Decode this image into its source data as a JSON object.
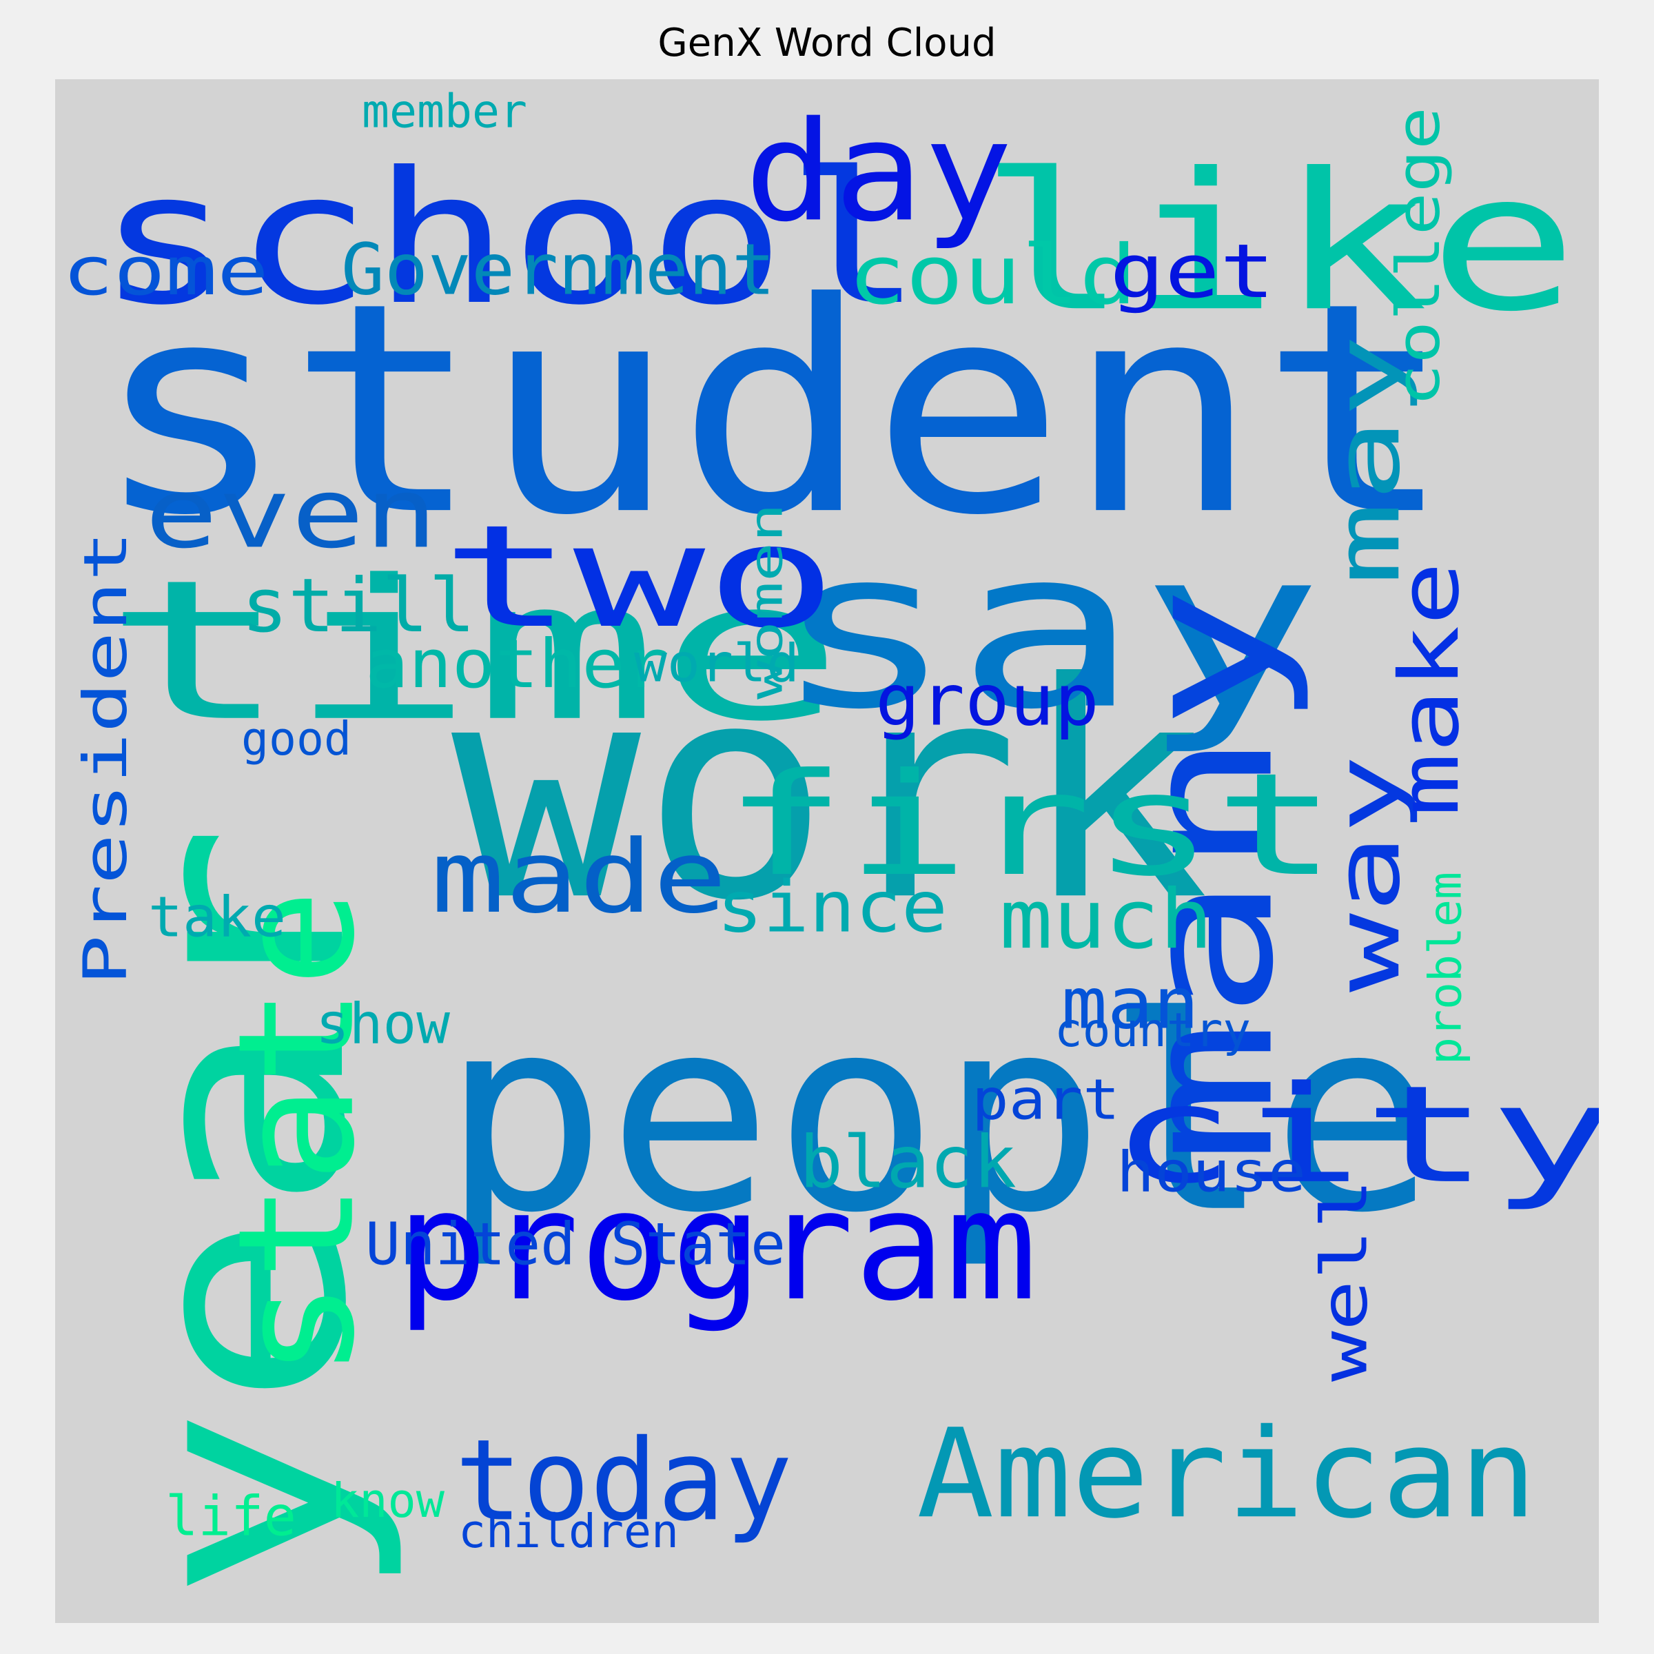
{
  "title": "GenX Word Cloud",
  "words": [
    {
      "text": "student",
      "color": "#0563d2"
    },
    {
      "text": "people",
      "color": "#0579c2"
    },
    {
      "text": "work",
      "color": "#05a0ac"
    },
    {
      "text": "time",
      "color": "#00b4a8"
    },
    {
      "text": "year",
      "color": "#00d3a0"
    },
    {
      "text": "say",
      "color": "#0278c8"
    },
    {
      "text": "school",
      "color": "#0438e0"
    },
    {
      "text": "like",
      "color": "#00c4a8"
    },
    {
      "text": "many",
      "color": "#0444de"
    },
    {
      "text": "first",
      "color": "#00b4a8"
    },
    {
      "text": "state",
      "color": "#00ee90"
    },
    {
      "text": "program",
      "color": "#0000ee"
    },
    {
      "text": "city",
      "color": "#0438e0"
    },
    {
      "text": "American",
      "color": "#0398b4"
    },
    {
      "text": "two",
      "color": "#0230e4"
    },
    {
      "text": "even",
      "color": "#0760c8"
    },
    {
      "text": "day",
      "color": "#0414e4"
    },
    {
      "text": "today",
      "color": "#0444d4"
    },
    {
      "text": "made",
      "color": "#0460c8"
    },
    {
      "text": "could",
      "color": "#00c8a8"
    },
    {
      "text": "Government",
      "color": "#0288b8"
    },
    {
      "text": "way",
      "color": "#0438e0"
    },
    {
      "text": "may",
      "color": "#0294b8"
    },
    {
      "text": "make",
      "color": "#0330e4"
    },
    {
      "text": "well",
      "color": "#0330e0"
    },
    {
      "text": "college",
      "color": "#00c4a8"
    },
    {
      "text": "much",
      "color": "#00b8a6"
    },
    {
      "text": "black",
      "color": "#00a8b0"
    },
    {
      "text": "another",
      "color": "#00b8a8"
    },
    {
      "text": "still",
      "color": "#00aca8"
    },
    {
      "text": "since",
      "color": "#00aab0"
    },
    {
      "text": "President",
      "color": "#0454d8"
    },
    {
      "text": "group",
      "color": "#0414e0"
    },
    {
      "text": "get",
      "color": "#0414e0"
    },
    {
      "text": "come",
      "color": "#0454d8"
    },
    {
      "text": "man",
      "color": "#0454d8"
    },
    {
      "text": "United State",
      "color": "#0444d8"
    },
    {
      "text": "house",
      "color": "#0444d8"
    },
    {
      "text": "part",
      "color": "#0444d8"
    },
    {
      "text": "show",
      "color": "#00aab0"
    },
    {
      "text": "take",
      "color": "#00aab0"
    },
    {
      "text": "country",
      "color": "#0454d4"
    },
    {
      "text": "world",
      "color": "#00aab0"
    },
    {
      "text": "women",
      "color": "#00aab0"
    },
    {
      "text": "problem",
      "color": "#00e698"
    },
    {
      "text": "good",
      "color": "#0454d4"
    },
    {
      "text": "member",
      "color": "#00aab0"
    },
    {
      "text": "life",
      "color": "#00ee90"
    },
    {
      "text": "know",
      "color": "#00e898"
    },
    {
      "text": "children",
      "color": "#0444d8"
    }
  ]
}
